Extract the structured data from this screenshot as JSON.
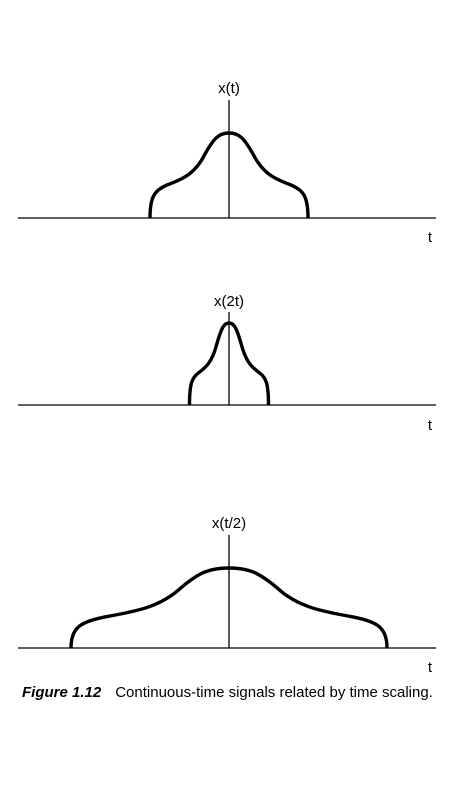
{
  "panels": [
    {
      "signal_label": "x(t)",
      "axis_label": "t",
      "scale": 1
    },
    {
      "signal_label": "x(2t)",
      "axis_label": "t",
      "scale": 0.5
    },
    {
      "signal_label": "x(t/2)",
      "axis_label": "t",
      "scale": 2
    }
  ],
  "caption": {
    "number": "Figure 1.12",
    "text": "Continuous-time signals related by time scaling."
  }
}
